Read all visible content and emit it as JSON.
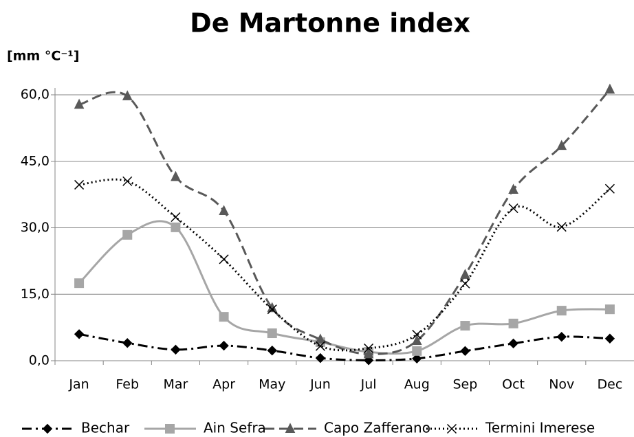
{
  "chart_data": {
    "type": "line",
    "title": "De Martonne index",
    "y_label": "[mm °C⁻¹]",
    "categories": [
      "Jan",
      "Feb",
      "Mar",
      "Apr",
      "May",
      "Jun",
      "Jul",
      "Aug",
      "Sep",
      "Oct",
      "Nov",
      "Dec"
    ],
    "series": [
      {
        "name": "Bechar",
        "color": "#000000",
        "dash": "dash-dot",
        "marker": "diamond",
        "values": [
          6.0,
          4.0,
          2.5,
          3.4,
          2.3,
          0.6,
          0.1,
          0.5,
          2.2,
          3.9,
          5.4,
          5.0
        ]
      },
      {
        "name": "Ain Sefra",
        "color": "#a6a6a6",
        "dash": "solid",
        "marker": "square",
        "values": [
          17.5,
          28.4,
          30.1,
          9.9,
          6.2,
          4.2,
          2.0,
          2.2,
          7.9,
          8.4,
          11.3,
          11.6
        ]
      },
      {
        "name": "Capo Zafferano",
        "color": "#595959",
        "dash": "dash",
        "marker": "triangle",
        "values": [
          57.8,
          59.7,
          41.5,
          33.8,
          11.9,
          4.8,
          1.5,
          4.5,
          19.4,
          38.6,
          48.5,
          61.2
        ]
      },
      {
        "name": "Termini Imerese",
        "color": "#000000",
        "dash": "dot",
        "marker": "x",
        "values": [
          39.7,
          40.5,
          32.4,
          22.9,
          11.6,
          3.3,
          2.8,
          5.9,
          17.4,
          34.4,
          30.2,
          38.8
        ]
      }
    ],
    "ylim": [
      0,
      60
    ],
    "yticks": [
      {
        "value": 0,
        "label": "0,0"
      },
      {
        "value": 15,
        "label": "15,0"
      },
      {
        "value": 30,
        "label": "30,0"
      },
      {
        "value": 45,
        "label": "45,0"
      },
      {
        "value": 60,
        "label": "60,0"
      }
    ],
    "grid": true,
    "smooth": true,
    "legend": "bottom"
  }
}
